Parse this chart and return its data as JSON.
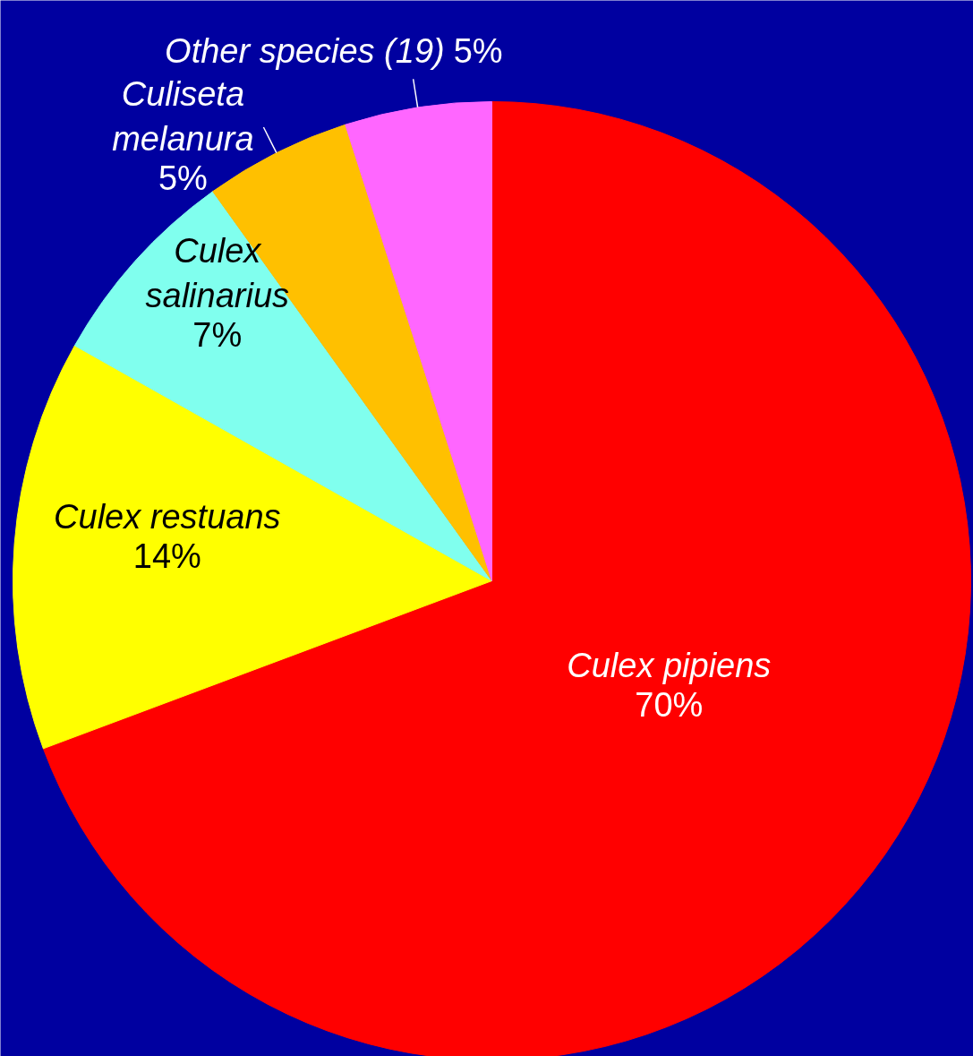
{
  "chart_data": {
    "type": "pie",
    "categories": [
      "Culex pipiens",
      "Culex restuans",
      "Culex salinarius",
      "Culiseta melanura",
      "Other species (19)"
    ],
    "values": [
      70,
      14,
      7,
      5,
      5
    ],
    "value_labels": [
      "70%",
      "14%",
      "7%",
      "5%",
      "5%"
    ],
    "colors": [
      "#ff0000",
      "#ffff00",
      "#80ffee",
      "#ffc000",
      "#ff66ff"
    ]
  }
}
